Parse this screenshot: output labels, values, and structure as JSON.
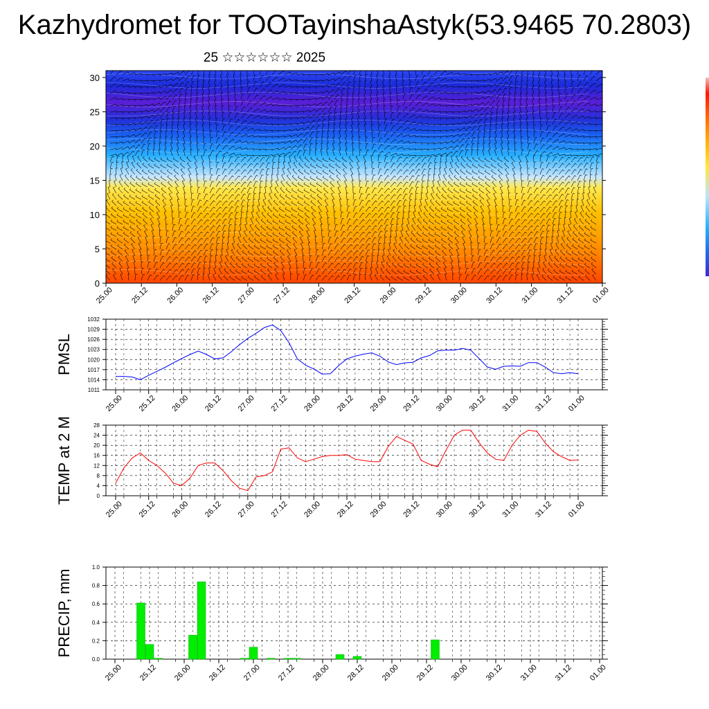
{
  "page": {
    "title": "Kazhydromet for TOOTayinshaAstyk(53.9465 70.2803)",
    "subtitle": "25 ☆☆☆☆☆☆ 2025"
  },
  "colors": {
    "pmsl_line": "#0000ff",
    "temp_line": "#ff0000",
    "precip_bar": "#00ee00",
    "grid": "#000000"
  },
  "chart_data": [
    {
      "type": "heatmap",
      "panel": "cross-section",
      "ylim": [
        0,
        31
      ],
      "yticks": [
        "0",
        "5",
        "10",
        "15",
        "20",
        "25",
        "30"
      ],
      "xticks": [
        "25.00",
        "25.12",
        "26.00",
        "26.12",
        "27.00",
        "27.12",
        "28.00",
        "28.12",
        "29.00",
        "29.12",
        "30.00",
        "30.12",
        "31.00",
        "31.12",
        "01.00"
      ],
      "colorbar": [
        "#3a2cd1",
        "#1e6bf0",
        "#22b5ff",
        "#b8e6ff",
        "#ffe838",
        "#ffb500",
        "#ff6a00",
        "#ff1800",
        "#c80000"
      ]
    },
    {
      "type": "line",
      "panel": "pmsl",
      "ylabel": "PMSL",
      "ylim": [
        1011,
        1032
      ],
      "yticks": [
        "1011",
        "1014",
        "1017",
        "1020",
        "1023",
        "1026",
        "1029",
        "1032"
      ],
      "xticks": [
        "25.00",
        "25.12",
        "26.00",
        "26.12",
        "27.00",
        "27.12",
        "28.00",
        "28.12",
        "29.00",
        "29.12",
        "30.00",
        "30.12",
        "31.00",
        "31.12",
        "01.00"
      ],
      "x": [
        0,
        3,
        6,
        9,
        12,
        15,
        18,
        21,
        24,
        27,
        30,
        33,
        36,
        39,
        42,
        45,
        48,
        51,
        54,
        57,
        60,
        63,
        66,
        69,
        72,
        75,
        78,
        81,
        84,
        87,
        90,
        93,
        96,
        99,
        102,
        105,
        108,
        111,
        114,
        117,
        120,
        123,
        126,
        129,
        132,
        135,
        138,
        141,
        144,
        147,
        150,
        153,
        156,
        159,
        162,
        165,
        168
      ],
      "series": [
        {
          "values": [
            1015,
            1015,
            1014.8,
            1014,
            1015.3,
            1016.5,
            1017.7,
            1019,
            1020.3,
            1021.5,
            1022.5,
            1021.5,
            1020.2,
            1020.5,
            1022.3,
            1024.4,
            1026.3,
            1027.8,
            1029.5,
            1030.3,
            1028.6,
            1025,
            1020.2,
            1018.3,
            1017.2,
            1015.7,
            1015.8,
            1018.2,
            1020.2,
            1021,
            1021.6,
            1022,
            1021,
            1019.3,
            1018.5,
            1019,
            1019.2,
            1020.5,
            1021.2,
            1022.6,
            1022.8,
            1022.8,
            1023.3,
            1022.8,
            1020.3,
            1017.8,
            1017.1,
            1018,
            1018.1,
            1018,
            1019.1,
            1019.1,
            1017.8,
            1016.1,
            1015.8,
            1016.1,
            1015.8
          ]
        }
      ]
    },
    {
      "type": "line",
      "panel": "temperature",
      "ylabel": "TEMP at 2 M",
      "ylim": [
        0,
        28
      ],
      "yticks": [
        "0",
        "4",
        "8",
        "12",
        "16",
        "20",
        "24",
        "28"
      ],
      "xticks": [
        "25.00",
        "25.12",
        "26.00",
        "26.12",
        "27.00",
        "27.12",
        "28.00",
        "28.12",
        "29.00",
        "29.12",
        "30.00",
        "30.12",
        "31.00",
        "31.12",
        "01.00"
      ],
      "x": [
        0,
        3,
        6,
        9,
        12,
        15,
        18,
        21,
        24,
        27,
        30,
        33,
        36,
        39,
        42,
        45,
        48,
        51,
        54,
        57,
        60,
        63,
        66,
        69,
        72,
        75,
        78,
        81,
        84,
        87,
        90,
        93,
        96,
        99,
        102,
        105,
        108,
        111,
        114,
        117,
        120,
        123,
        126,
        129,
        132,
        135,
        138,
        141,
        144,
        147,
        150,
        153,
        156,
        159,
        162,
        165,
        168
      ],
      "series": [
        {
          "values": [
            5,
            11,
            15,
            17,
            14,
            12,
            9,
            5,
            4,
            7,
            12,
            13,
            13,
            10,
            6,
            3,
            2,
            7.5,
            8,
            9.5,
            18.5,
            19,
            15,
            13.5,
            14.5,
            15.5,
            16,
            16,
            16.3,
            14.5,
            14,
            13.5,
            13.5,
            19.5,
            23.5,
            22,
            20.5,
            14,
            12.5,
            11.5,
            18,
            24,
            26,
            26,
            21,
            17,
            14.5,
            14,
            20,
            24,
            26,
            25.5,
            21,
            17.5,
            15.5,
            14,
            14.2
          ]
        }
      ]
    },
    {
      "type": "bar",
      "panel": "precipitation",
      "ylabel": "PRECIP, mm",
      "ylim": [
        0,
        1
      ],
      "yticks": [
        "0.0",
        "0.2",
        "0.4",
        "0.6",
        "0.8",
        "1.0"
      ],
      "xticks": [
        "25.00",
        "25.12",
        "26.00",
        "26.12",
        "27.00",
        "27.12",
        "28.00",
        "28.12",
        "29.00",
        "29.12",
        "30.00",
        "30.12",
        "31.00",
        "31.12",
        "01.00"
      ],
      "x": [
        9,
        12,
        15,
        27,
        30,
        45,
        48,
        54,
        60,
        63,
        78,
        84,
        111,
        123
      ],
      "series": [
        {
          "values": [
            0.61,
            0.16,
            0.01,
            0.26,
            0.84,
            0.01,
            0.13,
            0.01,
            0.01,
            0.01,
            0.05,
            0.03,
            0.21,
            0.0
          ]
        }
      ]
    }
  ]
}
